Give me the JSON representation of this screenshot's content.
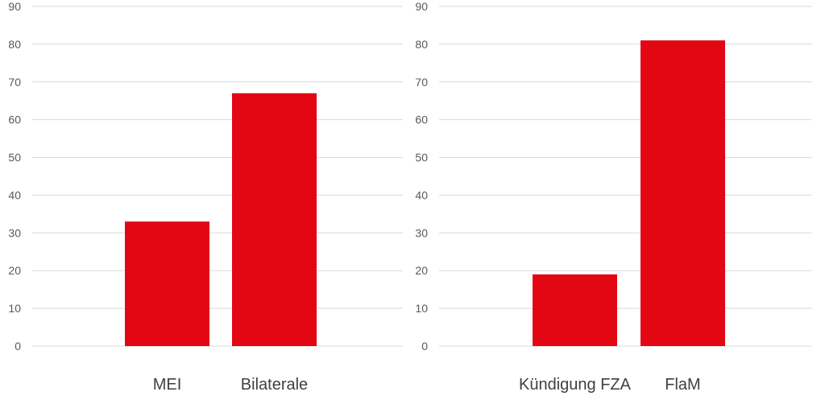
{
  "colors": {
    "bar": "#e30613",
    "grid": "#d9d9d9",
    "tick_text": "#595959",
    "category_text": "#404040"
  },
  "chart_data": [
    {
      "type": "bar",
      "title": "",
      "xlabel": "",
      "ylabel": "",
      "ylim": [
        0,
        90
      ],
      "yticks": [
        "0",
        "10",
        "20",
        "30",
        "40",
        "50",
        "60",
        "70",
        "80",
        "90"
      ],
      "categories": [
        "MEI",
        "Bilaterale"
      ],
      "values": [
        33,
        67
      ],
      "grid": true,
      "legend": "none"
    },
    {
      "type": "bar",
      "title": "",
      "xlabel": "",
      "ylabel": "",
      "ylim": [
        0,
        90
      ],
      "yticks": [
        "0",
        "10",
        "20",
        "30",
        "40",
        "50",
        "60",
        "70",
        "80",
        "90"
      ],
      "categories": [
        "Kündigung FZA",
        "FlaM"
      ],
      "values": [
        19,
        81
      ],
      "grid": true,
      "legend": "none"
    }
  ]
}
